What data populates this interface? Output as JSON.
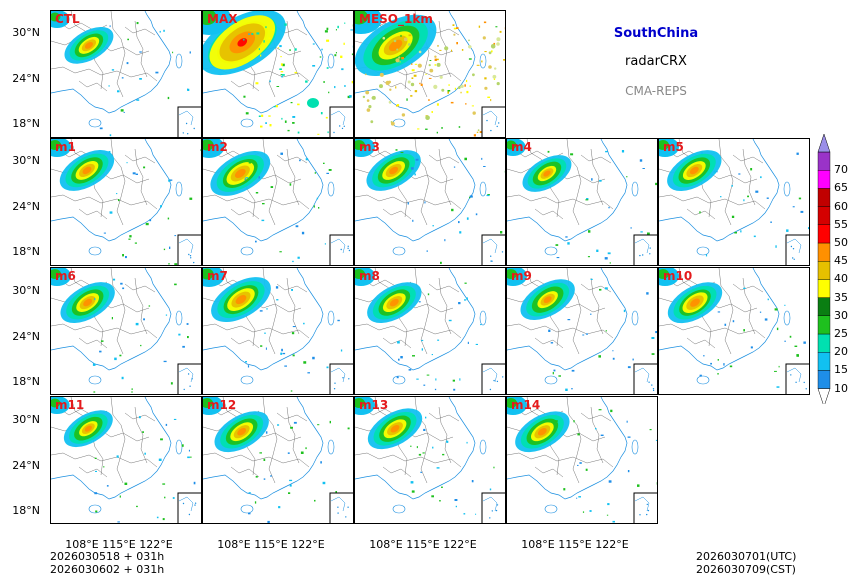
{
  "header": {
    "region": "SouthChina",
    "variable": "radarCRX",
    "model": "CMA-REPS",
    "region_color": "#0000cc",
    "model_color": "#888888"
  },
  "panels": [
    {
      "label": "CTL",
      "intensity": 1.0,
      "spread": 0.9,
      "style": "normal"
    },
    {
      "label": "MAX",
      "intensity": 1.8,
      "spread": 1.6,
      "style": "max"
    },
    {
      "label": "MESO_1km",
      "intensity": 1.0,
      "spread": 1.5,
      "style": "meso"
    },
    {
      "label": "m1",
      "intensity": 1.0,
      "spread": 1.0,
      "style": "normal"
    },
    {
      "label": "m2",
      "intensity": 1.1,
      "spread": 1.1,
      "style": "normal"
    },
    {
      "label": "m3",
      "intensity": 1.0,
      "spread": 1.0,
      "style": "normal"
    },
    {
      "label": "m4",
      "intensity": 0.9,
      "spread": 0.9,
      "style": "normal"
    },
    {
      "label": "m5",
      "intensity": 1.0,
      "spread": 1.0,
      "style": "normal"
    },
    {
      "label": "m6",
      "intensity": 1.0,
      "spread": 1.0,
      "style": "normal"
    },
    {
      "label": "m7",
      "intensity": 1.1,
      "spread": 1.1,
      "style": "normal"
    },
    {
      "label": "m8",
      "intensity": 1.0,
      "spread": 1.0,
      "style": "normal"
    },
    {
      "label": "m9",
      "intensity": 0.9,
      "spread": 1.0,
      "style": "normal"
    },
    {
      "label": "m10",
      "intensity": 1.1,
      "spread": 1.0,
      "style": "normal"
    },
    {
      "label": "m11",
      "intensity": 0.9,
      "spread": 0.9,
      "style": "normal"
    },
    {
      "label": "m12",
      "intensity": 1.0,
      "spread": 1.0,
      "style": "normal"
    },
    {
      "label": "m13",
      "intensity": 1.0,
      "spread": 1.0,
      "style": "normal"
    },
    {
      "label": "m14",
      "intensity": 1.0,
      "spread": 1.0,
      "style": "normal"
    }
  ],
  "axes": {
    "lat_labels": [
      "30°N",
      "24°N",
      "18°N"
    ],
    "lon_labels": [
      "108°E",
      "115°E",
      "122°E"
    ]
  },
  "colorbar": {
    "levels": [
      "10",
      "15",
      "20",
      "25",
      "30",
      "35",
      "40",
      "45",
      "50",
      "55",
      "60",
      "65",
      "70"
    ],
    "colors": [
      "#1e8ee8",
      "#11c1f1",
      "#00e0b0",
      "#1ec01e",
      "#0a7e12",
      "#ffff00",
      "#e6c000",
      "#ff9000",
      "#ff0000",
      "#d40000",
      "#c00000",
      "#ff00ff",
      "#9a33c8",
      "#9b8ee8"
    ],
    "under_color": "#ffffff"
  },
  "footer": {
    "init_time_1": "2026030518  +  031h",
    "init_time_2": "2026030602  +  031h",
    "valid_utc": "2026030701(UTC)",
    "valid_cst": "2026030709(CST)"
  }
}
